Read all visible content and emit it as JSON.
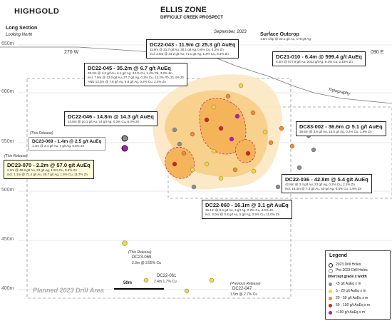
{
  "header": {
    "logo": "HIGHGOLD",
    "title": "ELLIS ZONE",
    "subtitle": "DIFFICULT CREEK PROSPECT",
    "date": "September, 2023",
    "section": "Long Section",
    "view": "Looking North"
  },
  "elevations": [
    "650m",
    "600m",
    "550m",
    "500m",
    "450m",
    "400m"
  ],
  "gridlines": [
    "270 W",
    "090 E"
  ],
  "surface": {
    "title": "Surface Outcrop",
    "detail": "1.5m chip @ 22.1 g/t Au, 178 g/t Ag"
  },
  "topography": "Topography",
  "intercepts": [
    {
      "id": "dc22-043",
      "title": "DC22-043 - 11.9m @ 25.3 g/t AuEq",
      "lines": [
        "11.9m @ 21.7 g/t Au, 30.1 g/t Ag, 0.6% Cu, 4.2% Zn",
        "incl. 3.9m @ 34.2 g/t Au, 71.1 g/t Ag, 1.3% Cu, 8.3% Zn"
      ]
    },
    {
      "id": "dc21-010",
      "title": "DC21-010 - 6.4m @ 599.4 g/t AuEq",
      "lines": [
        "6.4m @ 577.9 g/t Au, 2023 g/t Ag, 0.3% Cu, 2.15% Zn"
      ]
    },
    {
      "id": "dc22-045",
      "title": "DC22-045 - 35.2m @ 6.7 g/t AuEq",
      "lines": [
        "35.2m @ 4.2 g/t Au, 6.1 g/t Ag, 0.1% Cu, 1.4% Pb, 3.2% Zn",
        "incl. 7.9m @ 13.0 g/t Au, 37.7 g/t Ag, 0.3% Cu, 13.2% Pb, 31.4% Zn",
        "AND 13.3m @ 7.8 g/t Au, 6.8 g/t Ag, 0.2% Cu, 2.4% Zn"
      ]
    },
    {
      "id": "dc22-046",
      "title": "DC22-046 - 14.8m @ 14.3 g/t AuEq",
      "lines": [
        "14.8m @ 10.1 g/t Au, 14 g/t Ag, 0.3% Cu, 6.0% Zn"
      ]
    },
    {
      "id": "dc83-002",
      "title": "DC83-002 - 36.6m @ 5.1 g/t AuEq",
      "lines": [
        "36.6m @ 3.6 g/t Au, 15.5 g/t Ag, 0.2% Cu, 1.8% Zn"
      ]
    },
    {
      "id": "dc23-069",
      "title": "DC23-069 - 1.4m @ 2.5 g/t AuEq",
      "release": "(This Release)",
      "lines": [
        "1.4m @ 2.1 g/t Au, 7 g/t Ag, 0.6% Zn"
      ]
    },
    {
      "id": "dc23-070",
      "title": "DC23-070 - 2.2m @ 57.0 g/t AuEq",
      "release": "(This Release)",
      "lines": [
        "2.2m @ 49.9 g/t Au, 23 g/t Ag, 1.5% Cu, 8.4% Zn",
        "incl. 1.1m @ 71.4 g/t Au, 29.7 g/t Ag, 1.5% Cu, 11.7% Zn"
      ]
    },
    {
      "id": "dc22-036",
      "title": "DC22-036 - 42.8m @ 5.4 g/t AuEq",
      "lines": [
        "42.8m @ 3.4 g/t Au, 23 g/t Ag, 0.2% Cu, 2.1% Zn",
        "incl. 18.4m @ 7.3 g/t Au, 50 g/t Ag, 0.4% Cu, 3.9% Zn"
      ]
    },
    {
      "id": "dc22-060",
      "title": "DC22-060 - 16.1m @ 3.1 g/t AuEq",
      "lines": [
        "16.1m @ 0.4 g/t Au, 3 g/t Ag, 0.2% Cu, 4.0% Zn",
        "incl. 3.0m @ 0.8 g/t Au, 5 g/t Ag, 0.5% Cu, 11.0% Zn"
      ]
    }
  ],
  "lower_labels": [
    {
      "id": "dc23-069-low",
      "release": "(This Release)",
      "name": "DC23-069",
      "detail": "2.3m @ 3.55% Cu"
    },
    {
      "id": "dc22-061",
      "name": "DC22-061",
      "detail": "2.4m 1.7% Cu"
    },
    {
      "id": "dc22-047",
      "release": "(Previous Release)",
      "name": "DC22-047",
      "detail": "1.5m @ 2.7% Cu"
    }
  ],
  "planned": "Planned 2023 Drill Area",
  "scale": "50m",
  "legend": {
    "title": "Legend",
    "drill_2023": "2023 Drill Holes",
    "drill_pre": "Pre-2023 Drill Holes",
    "grade_title": "Intercept grade x width",
    "grades": [
      {
        "label": "<5 g/t AuEq x m",
        "color": "#8c8c8c"
      },
      {
        "label": "5 - 20 g/t AuEq x m",
        "color": "#f2d640"
      },
      {
        "label": "20 - 50 g/t AuEq x m",
        "color": "#f08a2c"
      },
      {
        "label": "50 - 100 g/t AuEq x m",
        "color": "#d81e1e"
      },
      {
        "label": ">100 g/t AuEq x m",
        "color": "#b01cb5"
      }
    ]
  }
}
